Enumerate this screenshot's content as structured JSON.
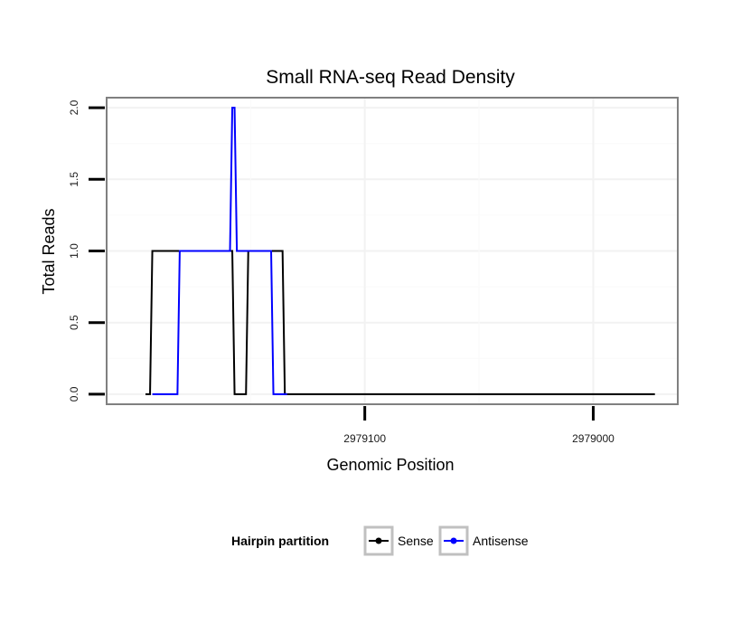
{
  "chart_data": {
    "type": "line",
    "title": "Small RNA-seq Read Density",
    "xlabel": "Genomic Position",
    "ylabel": "Total Reads",
    "xlim": [
      2979213,
      2978963
    ],
    "ylim": [
      -0.07,
      2.07
    ],
    "x_reversed": true,
    "grid": true,
    "x_ticks": [
      2979100,
      2979000
    ],
    "x_tick_labels": [
      "2979100",
      "2979000"
    ],
    "y_ticks": [
      0,
      0.5,
      1,
      1.5,
      2
    ],
    "y_tick_labels": [
      "0.0",
      "0.5",
      "1.0",
      "1.5",
      "2.0"
    ],
    "legend": {
      "title": "Hairpin partition",
      "position": "bottom",
      "entries": [
        "Sense",
        "Antisense"
      ]
    },
    "series": [
      {
        "name": "Sense",
        "color": "#000000",
        "x": [
          2979196,
          2979194,
          2979193,
          2979170,
          2979169,
          2979160,
          2979159,
          2979158,
          2979157,
          2979152,
          2979151,
          2979148,
          2979147,
          2979146,
          2979144,
          2979141,
          2979138,
          2979136,
          2979135,
          2979134,
          2978973
        ],
        "values": [
          0,
          0,
          1,
          1,
          1,
          1,
          1,
          1,
          0,
          0,
          1,
          1,
          1,
          1,
          1,
          1,
          1,
          1,
          0,
          0,
          0
        ]
      },
      {
        "name": "Antisense",
        "color": "#0000ff",
        "x": [
          2979193,
          2979182,
          2979181,
          2979160,
          2979159,
          2979158,
          2979157,
          2979156,
          2979155,
          2979141,
          2979140,
          2979135,
          2979134
        ],
        "values": [
          0,
          0,
          1,
          1,
          1,
          2,
          2,
          1,
          1,
          1,
          0,
          0,
          0
        ]
      }
    ]
  }
}
